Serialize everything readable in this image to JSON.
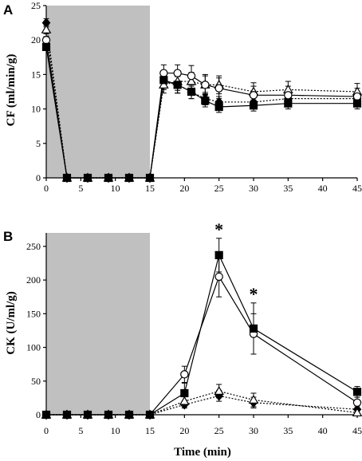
{
  "chart_data": [
    {
      "type": "line",
      "panel_label": "A",
      "ylabel": "CF (ml/min/g)",
      "xlabel": "",
      "xlim": [
        0,
        45
      ],
      "ylim": [
        0,
        25
      ],
      "xticks": [
        "0",
        "5",
        "10",
        "15",
        "20",
        "25",
        "30",
        "35",
        "40",
        "45"
      ],
      "yticks": [
        "0",
        "5",
        "10",
        "15",
        "20",
        "25"
      ],
      "shaded_region": [
        0,
        15
      ],
      "series": [
        {
          "marker": "filled-diamond",
          "line": "dotted",
          "x": [
            0,
            3,
            6,
            9,
            12,
            15,
            17,
            19,
            21,
            23,
            25,
            30,
            35,
            45
          ],
          "y": [
            22.5,
            0,
            0,
            0,
            0,
            0,
            14.0,
            13.5,
            12.5,
            11.5,
            11.0,
            11.0,
            11.5,
            11.5
          ],
          "err": [
            0.6,
            0,
            0,
            0,
            0,
            0,
            1.2,
            1.2,
            1.0,
            0.9,
            0.8,
            0.8,
            0.8,
            0.8
          ]
        },
        {
          "marker": "open-triangle",
          "line": "dotted",
          "x": [
            0,
            3,
            6,
            9,
            12,
            15,
            17,
            19,
            21,
            23,
            25,
            30,
            35,
            45
          ],
          "y": [
            21.5,
            0,
            0,
            0,
            0,
            0,
            13.5,
            14.0,
            14.0,
            13.5,
            13.5,
            12.5,
            12.8,
            12.5
          ],
          "err": [
            0.6,
            0,
            0,
            0,
            0,
            0,
            1.2,
            1.3,
            1.3,
            1.3,
            1.3,
            1.3,
            1.2,
            1.2
          ]
        },
        {
          "marker": "open-circle",
          "line": "solid",
          "x": [
            0,
            3,
            6,
            9,
            12,
            15,
            17,
            19,
            21,
            23,
            25,
            30,
            35,
            45
          ],
          "y": [
            20.0,
            0,
            0,
            0,
            0,
            0,
            15.2,
            15.2,
            14.8,
            13.5,
            13.0,
            12.0,
            12.0,
            11.8
          ],
          "err": [
            0.5,
            0,
            0,
            0,
            0,
            0,
            1.2,
            1.2,
            1.5,
            1.5,
            1.5,
            1.3,
            1.3,
            1.2
          ]
        },
        {
          "marker": "filled-square",
          "line": "solid",
          "x": [
            0,
            3,
            6,
            9,
            12,
            15,
            17,
            19,
            21,
            23,
            25,
            30,
            35,
            45
          ],
          "y": [
            19.0,
            0,
            0,
            0,
            0,
            0,
            14.2,
            13.5,
            12.5,
            11.2,
            10.3,
            10.5,
            10.8,
            10.8
          ],
          "err": [
            0.5,
            0,
            0,
            0,
            0,
            0,
            1.2,
            1.2,
            1.0,
            0.9,
            0.8,
            0.8,
            0.8,
            0.8
          ]
        }
      ]
    },
    {
      "type": "line",
      "panel_label": "B",
      "ylabel": "CK (U/ml/g)",
      "xlabel": "Time (min)",
      "xlim": [
        0,
        45
      ],
      "ylim": [
        0,
        270
      ],
      "xticks": [
        "0",
        "5",
        "10",
        "15",
        "20",
        "25",
        "30",
        "35",
        "40",
        "45"
      ],
      "yticks": [
        "0",
        "50",
        "100",
        "150",
        "200",
        "250"
      ],
      "shaded_region": [
        0,
        15
      ],
      "annotations": [
        {
          "text": "*",
          "x": 25
        },
        {
          "text": "*",
          "x": 30
        }
      ],
      "series": [
        {
          "marker": "filled-diamond",
          "line": "dotted",
          "x": [
            0,
            3,
            6,
            9,
            12,
            15,
            20,
            25,
            30,
            45
          ],
          "y": [
            0,
            0,
            0,
            0,
            0,
            0,
            15,
            28,
            18,
            8
          ],
          "err": [
            0,
            0,
            0,
            0,
            0,
            0,
            5,
            8,
            8,
            5
          ]
        },
        {
          "marker": "open-triangle",
          "line": "dotted",
          "x": [
            0,
            3,
            6,
            9,
            12,
            15,
            20,
            25,
            30,
            45
          ],
          "y": [
            0,
            0,
            0,
            0,
            0,
            0,
            20,
            35,
            22,
            3
          ],
          "err": [
            0,
            0,
            0,
            0,
            0,
            0,
            8,
            10,
            10,
            4
          ]
        },
        {
          "marker": "open-circle",
          "line": "solid",
          "x": [
            0,
            3,
            6,
            9,
            12,
            15,
            20,
            25,
            30,
            45
          ],
          "y": [
            0,
            0,
            0,
            0,
            0,
            0,
            60,
            205,
            120,
            18
          ],
          "err": [
            0,
            0,
            0,
            0,
            0,
            0,
            12,
            30,
            30,
            8
          ]
        },
        {
          "marker": "filled-square",
          "line": "solid",
          "x": [
            0,
            3,
            6,
            9,
            12,
            15,
            20,
            25,
            30,
            45
          ],
          "y": [
            0,
            0,
            0,
            0,
            0,
            0,
            32,
            237,
            128,
            34
          ],
          "err": [
            0,
            0,
            0,
            0,
            0,
            0,
            15,
            25,
            38,
            8
          ]
        }
      ]
    }
  ]
}
